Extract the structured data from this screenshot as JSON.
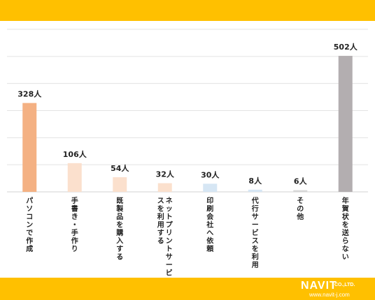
{
  "chart_data": {
    "type": "bar",
    "categories": [
      "パソコンで作成",
      "手書き・手作り",
      "既製品を購入する",
      "ネットプリントサービスを利用する",
      "印刷会社へ依頼",
      "代行サービスを利用",
      "その他",
      "年賀状を送らない"
    ],
    "values": [
      328,
      106,
      54,
      32,
      30,
      8,
      6,
      502
    ],
    "value_labels": [
      "328人",
      "106人",
      "54人",
      "32人",
      "30人",
      "8人",
      "6人",
      "502人"
    ],
    "colors": [
      "#f4b183",
      "#fbe0cd",
      "#fbe0cd",
      "#fbe0cd",
      "#d6e6f4",
      "#d6e6f4",
      "#d6d6d6",
      "#b3aeb0"
    ],
    "ylim": [
      0,
      600
    ],
    "grid": true,
    "legend": "none"
  },
  "brand": {
    "logo_text": "NAVIT",
    "logo_sub": "CO.,LTD.",
    "url": "www.navit-j.com",
    "band_color": "#ffc000"
  }
}
